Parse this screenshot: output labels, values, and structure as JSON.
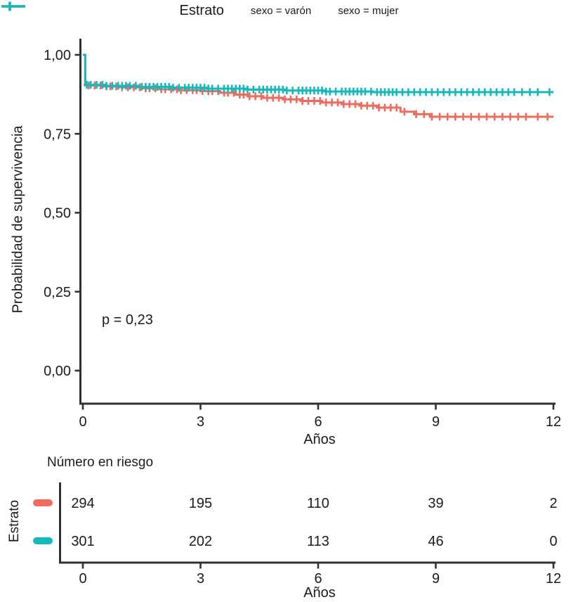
{
  "legend": {
    "title": "Estrato",
    "items": [
      {
        "label": "sexo = varón",
        "color": "#EF6B5E"
      },
      {
        "label": "sexo = mujer",
        "color": "#15B9BD"
      }
    ]
  },
  "chart_data": {
    "type": "line",
    "subtype": "kaplan-meier-step",
    "title": "",
    "xlabel": "Años",
    "ylabel": "Probabilidad de supervivencia",
    "annotation": "p = 0,23",
    "xlim": [
      0,
      12
    ],
    "ylim": [
      0,
      1
    ],
    "grid": false,
    "legend_position": "top",
    "xticks": [
      0,
      3,
      6,
      9,
      12
    ],
    "xtick_labels": [
      "0",
      "3",
      "6",
      "9",
      "12"
    ],
    "yticks": [
      {
        "v": 0.0,
        "label": "0,00"
      },
      {
        "v": 0.25,
        "label": "0,25"
      },
      {
        "v": 0.5,
        "label": "0,50"
      },
      {
        "v": 0.75,
        "label": "0,75"
      },
      {
        "v": 1.0,
        "label": "1,00"
      }
    ],
    "series": [
      {
        "name": "sexo = varón",
        "color": "#EF6B5E",
        "steps": [
          [
            0,
            1.0
          ],
          [
            0.06,
            0.903
          ],
          [
            0.5,
            0.9
          ],
          [
            1.0,
            0.897
          ],
          [
            1.5,
            0.894
          ],
          [
            2.0,
            0.891
          ],
          [
            2.5,
            0.888
          ],
          [
            3.0,
            0.885
          ],
          [
            3.5,
            0.88
          ],
          [
            3.9,
            0.874
          ],
          [
            4.2,
            0.869
          ],
          [
            4.6,
            0.864
          ],
          [
            5.1,
            0.859
          ],
          [
            5.6,
            0.854
          ],
          [
            6.1,
            0.849
          ],
          [
            6.6,
            0.844
          ],
          [
            7.1,
            0.839
          ],
          [
            7.55,
            0.833
          ],
          [
            8.1,
            0.82
          ],
          [
            8.45,
            0.812
          ],
          [
            8.85,
            0.804
          ],
          [
            12,
            0.804
          ]
        ],
        "censor_times": [
          0.15,
          0.3,
          0.45,
          0.6,
          0.7,
          0.85,
          1.0,
          1.15,
          1.3,
          1.45,
          1.6,
          1.7,
          1.85,
          2.0,
          2.1,
          2.25,
          2.4,
          2.5,
          2.65,
          2.8,
          2.9,
          3.05,
          3.2,
          3.3,
          3.45,
          3.6,
          3.7,
          3.85,
          4.0,
          4.1,
          4.25,
          4.4,
          4.55,
          4.7,
          4.85,
          5.0,
          5.15,
          5.3,
          5.45,
          5.6,
          5.75,
          5.9,
          6.05,
          6.2,
          6.35,
          6.5,
          6.65,
          6.8,
          6.95,
          7.1,
          7.25,
          7.4,
          7.55,
          7.7,
          7.85,
          8.0,
          8.2,
          8.5,
          8.7,
          8.9,
          9.1,
          9.3,
          9.5,
          9.7,
          9.9,
          10.1,
          10.3,
          10.5,
          10.7,
          10.9,
          11.1,
          11.3,
          11.6,
          11.85
        ]
      },
      {
        "name": "sexo = mujer",
        "color": "#15B9BD",
        "steps": [
          [
            0,
            1.0
          ],
          [
            0.06,
            0.905
          ],
          [
            0.6,
            0.902
          ],
          [
            1.4,
            0.899
          ],
          [
            2.3,
            0.896
          ],
          [
            3.2,
            0.893
          ],
          [
            4.2,
            0.89
          ],
          [
            5.2,
            0.887
          ],
          [
            6.2,
            0.884
          ],
          [
            7.4,
            0.882
          ],
          [
            12,
            0.882
          ]
        ],
        "censor_times": [
          0.1,
          0.2,
          0.35,
          0.5,
          0.6,
          0.75,
          0.9,
          1.0,
          1.1,
          1.2,
          1.35,
          1.5,
          1.6,
          1.7,
          1.8,
          1.9,
          2.0,
          2.1,
          2.2,
          2.3,
          2.45,
          2.6,
          2.7,
          2.8,
          2.9,
          3.0,
          3.1,
          3.2,
          3.3,
          3.45,
          3.6,
          3.7,
          3.8,
          3.9,
          4.0,
          4.1,
          4.2,
          4.35,
          4.5,
          4.6,
          4.7,
          4.8,
          4.9,
          5.0,
          5.1,
          5.2,
          5.35,
          5.5,
          5.6,
          5.7,
          5.8,
          5.9,
          6.0,
          6.1,
          6.2,
          6.3,
          6.45,
          6.6,
          6.7,
          6.8,
          6.9,
          7.0,
          7.1,
          7.2,
          7.35,
          7.5,
          7.6,
          7.7,
          7.8,
          7.9,
          8.0,
          8.15,
          8.3,
          8.45,
          8.6,
          8.75,
          8.9,
          9.05,
          9.2,
          9.35,
          9.5,
          9.65,
          9.8,
          9.95,
          10.1,
          10.25,
          10.4,
          10.55,
          10.7,
          10.85,
          11.0,
          11.2,
          11.4,
          11.6,
          11.9
        ]
      }
    ]
  },
  "risk_table": {
    "title": "Número en riesgo",
    "ylabel": "Estrato",
    "xlabel": "Años",
    "xticks": [
      0,
      3,
      6,
      9,
      12
    ],
    "xtick_labels": [
      "0",
      "3",
      "6",
      "9",
      "12"
    ],
    "rows": [
      {
        "name": "sexo = varón",
        "color": "#EF6B5E",
        "values": [
          "294",
          "195",
          "110",
          "39",
          "2"
        ]
      },
      {
        "name": "sexo = mujer",
        "color": "#15B9BD",
        "values": [
          "301",
          "202",
          "113",
          "46",
          "0"
        ]
      }
    ]
  },
  "colors": {
    "axis": "#2d3237",
    "text": "#1b1b1b",
    "background": "#ffffff"
  }
}
